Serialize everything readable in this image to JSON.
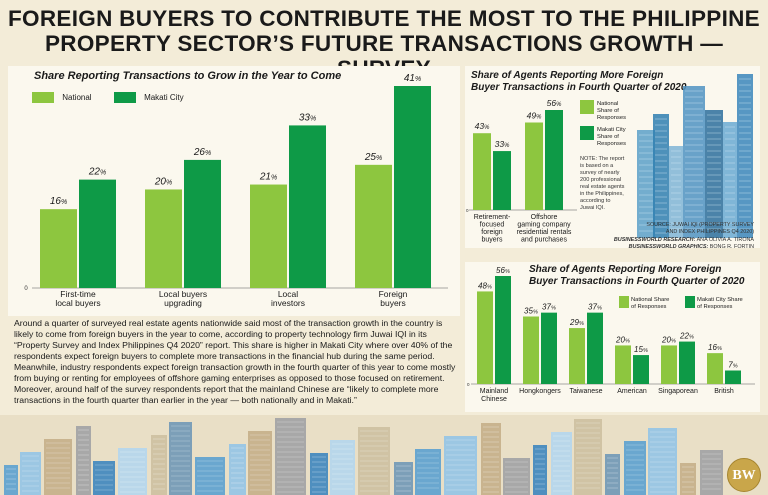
{
  "headline": {
    "line1": "FOREIGN BUYERS TO CONTRIBUTE THE MOST TO THE PHILIPPINE",
    "line2": "PROPERTY SECTOR’S FUTURE TRANSACTIONS GROWTH — SURVEY"
  },
  "colors": {
    "national": "#8dc63f",
    "makati": "#0e9a47",
    "background": "#f3ecd8",
    "panel": "#fbf8ee"
  },
  "chart_data": [
    {
      "type": "bar",
      "title": "Share Reporting Transactions to Grow in the Year to Come",
      "categories": [
        "First-time local buyers",
        "Local buyers upgrading",
        "Local investors",
        "Foreign buyers"
      ],
      "category_lines": [
        [
          "First-time",
          "local buyers"
        ],
        [
          "Local buyers",
          "upgrading"
        ],
        [
          "Local",
          "investors"
        ],
        [
          "Foreign",
          "buyers"
        ]
      ],
      "series": [
        {
          "name": "National",
          "values": [
            16,
            20,
            21,
            25
          ]
        },
        {
          "name": "Makati City",
          "values": [
            22,
            26,
            33,
            41
          ]
        }
      ],
      "value_suffix": "%",
      "ylim": [
        0,
        41
      ],
      "axis_zero_label": "0",
      "legend": "top-left"
    },
    {
      "type": "bar",
      "title": "Share of Agents Reporting More Foreign Buyer Transactions in Fourth Quarter of 2020",
      "title_lines": [
        "Share of Agents Reporting More Foreign",
        "Buyer Transactions in Fourth Quarter of 2020"
      ],
      "categories": [
        "Retirement-focused foreign buyers",
        "Offshore gaming company residential rentals and purchases"
      ],
      "category_lines": [
        [
          "Retirement-",
          "focused",
          "foreign",
          "buyers"
        ],
        [
          "Offshore",
          "gaming company",
          "residential rentals",
          "and purchases"
        ]
      ],
      "series": [
        {
          "name": "National Share of Responses",
          "values": [
            43,
            49
          ]
        },
        {
          "name": "Makati City Share of Responses",
          "values": [
            33,
            56
          ]
        }
      ],
      "legend_lines": [
        [
          "National",
          "Share of",
          "Responses"
        ],
        [
          "Makati City",
          "Share of",
          "Responses"
        ]
      ],
      "value_suffix": "%",
      "ylim": [
        0,
        56
      ],
      "legend": "right"
    },
    {
      "type": "bar",
      "title": "Share of Agents Reporting More Foreign Buyer Transactions in Fourth Quarter of 2020",
      "title_lines": [
        "Share of Agents Reporting More Foreign",
        "Buyer Transactions in Fourth Quarter of 2020"
      ],
      "categories": [
        "Mainland Chinese",
        "Hongkongers",
        "Taiwanese",
        "American",
        "Singaporean",
        "British"
      ],
      "category_lines": [
        [
          "Mainland",
          "Chinese"
        ],
        [
          "Hongkongers"
        ],
        [
          "Taiwanese"
        ],
        [
          "American"
        ],
        [
          "Singaporean"
        ],
        [
          "British"
        ]
      ],
      "series": [
        {
          "name": "National Share of Responses",
          "values": [
            48,
            35,
            29,
            20,
            20,
            16
          ]
        },
        {
          "name": "Makati City Share of Responses",
          "values": [
            56,
            37,
            37,
            15,
            22,
            7
          ]
        }
      ],
      "legend_lines": [
        [
          "National Share",
          "of Responses"
        ],
        [
          "Makati City Share",
          "of Responses"
        ]
      ],
      "value_suffix": "%",
      "ylim": [
        0,
        56
      ],
      "legend": "top"
    }
  ],
  "body_text": "Around a quarter of surveyed real estate agents nationwide said most of the transaction growth in the country is likely to come from foreign buyers in the year to come, according to property technology firm Juwai IQI in its “Property Survey and Index Philippines Q4 2020” report. This share is higher in Makati City where over 40% of the respondents expect foreign buyers to complete more transactions in the financial hub during the same period. Meanwhile, industry respondents expect foreign transaction growth in the fourth quarter of this year to come mostly from buying or renting for employees of offshore gaming enterprises as opposed to those focused on retirement. Moreover, around half of the survey respondents report that the mainland Chinese are “likely to complete more transactions in the fourth quarter than earlier in the year — both nationally and in Makati.”",
  "note": {
    "lines": [
      "NOTE: The report",
      "is based on a",
      "survey of nearly",
      "200 professional",
      "real estate agents",
      "in the Philippines,",
      "according to",
      "Juwai IQI."
    ]
  },
  "credits": {
    "source_line1": "SOURCE: JUWAI IQI (PROPERTY SURVEY",
    "source_line2": "AND INDEX PHILIPPINES Q4 2020)",
    "research_label": "BUSINESSWORLD RESEARCH:",
    "research_name": "ANA OLIVIA A. TIRONA",
    "graphics_label": "BUSINESSWORLD GRAPHICS:",
    "graphics_name": "BONG R. FORTIN"
  },
  "logo": {
    "text": "BW"
  }
}
